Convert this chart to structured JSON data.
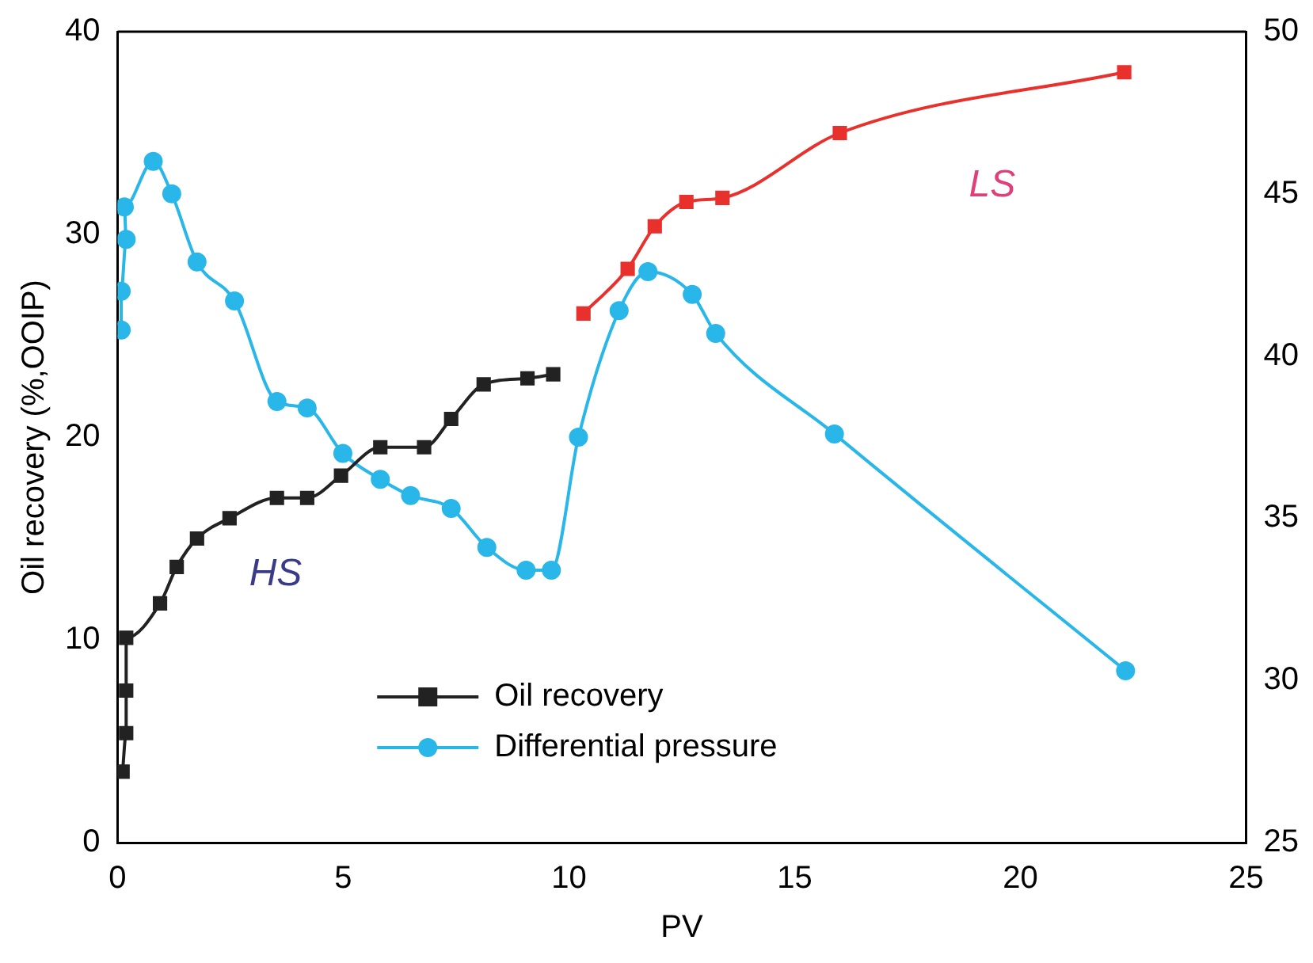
{
  "chart_data": {
    "type": "line",
    "xlabel": "PV",
    "ylabel": "Oil recovery (%,OOIP)",
    "xlim": [
      0,
      25
    ],
    "xticks": [
      0,
      5,
      10,
      15,
      20,
      25
    ],
    "ylim": [
      0,
      40
    ],
    "yticks": [
      0,
      10,
      20,
      30,
      40
    ],
    "y2lim": [
      25,
      50
    ],
    "y2ticks": [
      25,
      30,
      35,
      40,
      45,
      50
    ],
    "grid": false,
    "legend": "bottom",
    "line_style": "solid",
    "series": [
      {
        "name": "Oil recovery",
        "color": "#222222",
        "marker": "square",
        "x": [
          0.11,
          0.19,
          0.19,
          0.19,
          0.94,
          1.31,
          1.76,
          2.48,
          3.53,
          4.2,
          4.95,
          5.82,
          6.79,
          7.39,
          8.11,
          9.08,
          9.65
        ],
        "values": [
          3.5,
          5.4,
          7.5,
          10.1,
          11.8,
          13.6,
          15.0,
          16.0,
          17.0,
          17.0,
          18.1,
          19.5,
          19.5,
          20.9,
          22.6,
          22.9,
          23.1
        ]
      },
      {
        "name": "Differential pressure",
        "color": "#29b6e8",
        "marker": "circle",
        "axis": "y2",
        "x": [
          0.08,
          0.08,
          0.19,
          0.15,
          0.79,
          1.2,
          1.76,
          2.59,
          3.53,
          4.2,
          4.99,
          5.82,
          6.49,
          7.39,
          8.18,
          9.05,
          9.61,
          10.21,
          11.11,
          11.75,
          12.73,
          13.25,
          15.88,
          22.33
        ],
        "values": [
          40.8,
          42.0,
          43.6,
          44.6,
          46.0,
          45.0,
          42.9,
          41.7,
          38.6,
          38.4,
          37.0,
          36.2,
          35.7,
          35.3,
          34.1,
          33.4,
          33.4,
          37.5,
          41.4,
          42.6,
          41.9,
          40.7,
          37.6,
          30.3
        ]
      },
      {
        "color": "#e8302c",
        "marker": "square",
        "x": [
          10.32,
          11.3,
          11.9,
          12.6,
          13.4,
          16.0,
          22.3
        ],
        "values": [
          26.1,
          28.3,
          30.4,
          31.6,
          31.8,
          35.0,
          38.0
        ]
      }
    ],
    "annotations": [
      "HS",
      "LS"
    ]
  }
}
